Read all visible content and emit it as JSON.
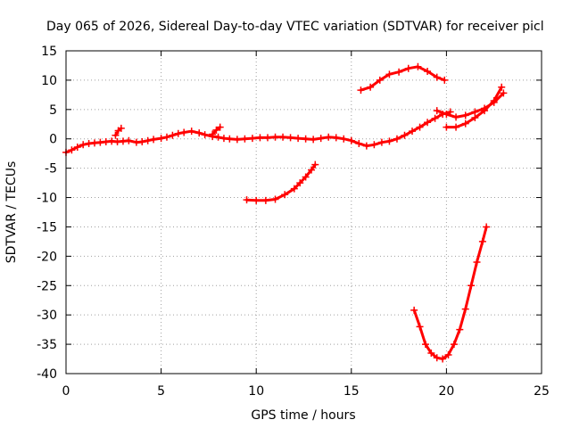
{
  "chart_data": {
    "type": "scatter",
    "title": "Day 065 of 2026, Sidereal Day-to-day VTEC variation (SDTVAR) for receiver picl",
    "xlabel": "GPS time / hours",
    "ylabel": "SDTVAR / TECUs",
    "xlim": [
      0,
      25
    ],
    "ylim": [
      -40,
      15
    ],
    "xticks": [
      "0",
      "5",
      "10",
      "15",
      "20",
      "25"
    ],
    "yticks": [
      "15",
      "10",
      "5",
      "0",
      "-5",
      "-10",
      "-15",
      "-20",
      "-25",
      "-30",
      "-35",
      "-40"
    ],
    "grid": true,
    "marker_color": "#ff0000",
    "series": [
      {
        "x": [
          0.0,
          0.3,
          0.6,
          0.9,
          1.2,
          1.5,
          1.8,
          2.1,
          2.4,
          2.7,
          3.0,
          3.3,
          3.7,
          4.0,
          4.3,
          4.6,
          5.0,
          5.3,
          5.6,
          5.9,
          6.2,
          6.6,
          7.0,
          7.3,
          7.7,
          8.0,
          8.3,
          8.6,
          9.0,
          9.4,
          9.8,
          10.2,
          10.6,
          11.0,
          11.4,
          11.8,
          12.2,
          12.6,
          13.0,
          13.4,
          13.8,
          14.2,
          14.6,
          15.0,
          15.4,
          15.8,
          16.2,
          16.6,
          17.0,
          17.4,
          17.8,
          18.2,
          18.6,
          19.0,
          19.4,
          19.8,
          20.2
        ],
        "y": [
          -2.3,
          -1.9,
          -1.4,
          -1.0,
          -0.8,
          -0.7,
          -0.6,
          -0.5,
          -0.4,
          -0.5,
          -0.4,
          -0.3,
          -0.6,
          -0.5,
          -0.3,
          -0.1,
          0.1,
          0.3,
          0.6,
          0.9,
          1.1,
          1.3,
          1.0,
          0.7,
          0.4,
          0.3,
          0.1,
          0.0,
          -0.1,
          0.0,
          0.1,
          0.2,
          0.2,
          0.3,
          0.3,
          0.2,
          0.1,
          0.0,
          -0.1,
          0.1,
          0.3,
          0.2,
          0.0,
          -0.3,
          -0.8,
          -1.2,
          -1.0,
          -0.6,
          -0.4,
          0.0,
          0.6,
          1.3,
          2.0,
          2.8,
          3.5,
          4.2,
          4.6
        ]
      },
      {
        "x": [
          2.6,
          2.75,
          2.9
        ],
        "y": [
          0.6,
          1.4,
          1.8
        ]
      },
      {
        "x": [
          7.7,
          7.9,
          8.1
        ],
        "y": [
          0.8,
          1.5,
          2.0
        ]
      },
      {
        "x": [
          19.5,
          20.0,
          20.5,
          21.0,
          21.5,
          22.0,
          22.5,
          23.0
        ],
        "y": [
          4.8,
          4.2,
          3.7,
          4.0,
          4.6,
          5.2,
          6.2,
          7.8
        ]
      },
      {
        "x": [
          20.0,
          20.5,
          21.0,
          21.5,
          22.0,
          22.5,
          22.9
        ],
        "y": [
          2.0,
          2.0,
          2.6,
          3.6,
          4.8,
          6.5,
          8.8
        ]
      },
      {
        "x": [
          15.5,
          16.0,
          16.5,
          17.0,
          17.5,
          18.0,
          18.5,
          19.0,
          19.5,
          19.9
        ],
        "y": [
          8.3,
          8.8,
          10.0,
          11.0,
          11.4,
          12.0,
          12.3,
          11.5,
          10.5,
          10.0
        ]
      },
      {
        "x": [
          9.5,
          10.0,
          10.5,
          11.0,
          11.5,
          12.0,
          12.3,
          12.6,
          12.9,
          13.1
        ],
        "y": [
          -10.4,
          -10.5,
          -10.5,
          -10.3,
          -9.5,
          -8.5,
          -7.5,
          -6.5,
          -5.3,
          -4.4
        ]
      },
      {
        "x": [
          18.3,
          18.6,
          18.9,
          19.2,
          19.5,
          19.8,
          20.1,
          20.4,
          20.7,
          21.0,
          21.3,
          21.6,
          21.9,
          22.1
        ],
        "y": [
          -29.2,
          -32.0,
          -35.0,
          -36.5,
          -37.3,
          -37.5,
          -36.8,
          -35.0,
          -32.5,
          -29.0,
          -25.0,
          -21.0,
          -17.5,
          -15.0
        ]
      }
    ]
  }
}
